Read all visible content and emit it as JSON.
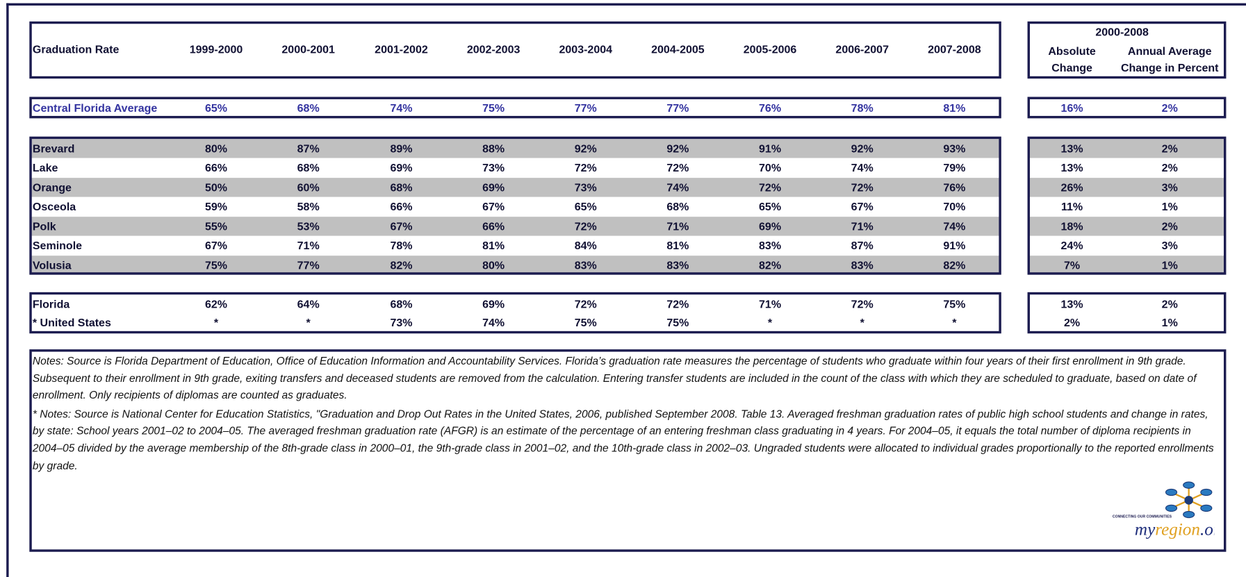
{
  "header": {
    "label": "Graduation Rate",
    "years": [
      "1999-2000",
      "2000-2001",
      "2001-2002",
      "2002-2003",
      "2003-2004",
      "2004-2005",
      "2005-2006",
      "2006-2007",
      "2007-2008"
    ],
    "change_period": "2000-2008",
    "change_columns": [
      "Absolute Change",
      "Annual Average Change in Percent"
    ]
  },
  "average": {
    "name": "Central Florida Average",
    "values": [
      "65%",
      "68%",
      "74%",
      "75%",
      "77%",
      "77%",
      "76%",
      "78%",
      "81%"
    ],
    "change": [
      "16%",
      "2%"
    ]
  },
  "counties": [
    {
      "name": "Brevard",
      "values": [
        "80%",
        "87%",
        "89%",
        "88%",
        "92%",
        "92%",
        "91%",
        "92%",
        "93%"
      ],
      "change": [
        "13%",
        "2%"
      ]
    },
    {
      "name": "Lake",
      "values": [
        "66%",
        "68%",
        "69%",
        "73%",
        "72%",
        "72%",
        "70%",
        "74%",
        "79%"
      ],
      "change": [
        "13%",
        "2%"
      ]
    },
    {
      "name": "Orange",
      "values": [
        "50%",
        "60%",
        "68%",
        "69%",
        "73%",
        "74%",
        "72%",
        "72%",
        "76%"
      ],
      "change": [
        "26%",
        "3%"
      ]
    },
    {
      "name": "Osceola",
      "values": [
        "59%",
        "58%",
        "66%",
        "67%",
        "65%",
        "68%",
        "65%",
        "67%",
        "70%"
      ],
      "change": [
        "11%",
        "1%"
      ]
    },
    {
      "name": "Polk",
      "values": [
        "55%",
        "53%",
        "67%",
        "66%",
        "72%",
        "71%",
        "69%",
        "71%",
        "74%"
      ],
      "change": [
        "18%",
        "2%"
      ]
    },
    {
      "name": "Seminole",
      "values": [
        "67%",
        "71%",
        "78%",
        "81%",
        "84%",
        "81%",
        "83%",
        "87%",
        "91%"
      ],
      "change": [
        "24%",
        "3%"
      ]
    },
    {
      "name": "Volusia",
      "values": [
        "75%",
        "77%",
        "82%",
        "80%",
        "83%",
        "83%",
        "82%",
        "83%",
        "82%"
      ],
      "change": [
        "7%",
        "1%"
      ]
    }
  ],
  "state": [
    {
      "name": "Florida",
      "values": [
        "62%",
        "64%",
        "68%",
        "69%",
        "72%",
        "72%",
        "71%",
        "72%",
        "75%"
      ],
      "change": [
        "13%",
        "2%"
      ]
    },
    {
      "name": "* United States",
      "values": [
        "*",
        "*",
        "73%",
        "74%",
        "75%",
        "75%",
        "*",
        "*",
        "*"
      ],
      "change": [
        "2%",
        "1%"
      ]
    }
  ],
  "notes": [
    "Notes: Source is Florida Department of Education, Office of Education Information and Accountability Services. Florida’s graduation rate measures the percentage of students who graduate within four years of their first enrollment in 9th grade. Subsequent to their enrollment in 9th grade, exiting transfers and deceased students are removed from the calculation. Entering transfer students are included in the count of the class with which they are scheduled to graduate, based on date of enrollment. Only recipients of diplomas are counted as graduates.",
    "* Notes: Source is National Center for Education Statistics, \"Graduation and Drop Out Rates in the United States, 2006, published September 2008. Table 13.  Averaged freshman graduation rates of public high school students and change in rates, by state: School years 2001–02 to 2004–05. The averaged freshman graduation rate (AFGR) is an estimate of the percentage of an entering freshman class graduating in 4 years. For 2004–05, it equals the total number of diploma recipients in 2004–05 divided by the average membership of the 8th-grade class in 2000–01, the 9th-grade class in 2001–02, and the 10th-grade class in 2002–03. Ungraded students were allocated to individual grades proportionally to the reported enrollments by grade."
  ],
  "logo": {
    "tagline": "CONNECTING OUR COMMUNITIES",
    "parts": [
      "my",
      "region",
      ".org"
    ]
  }
}
